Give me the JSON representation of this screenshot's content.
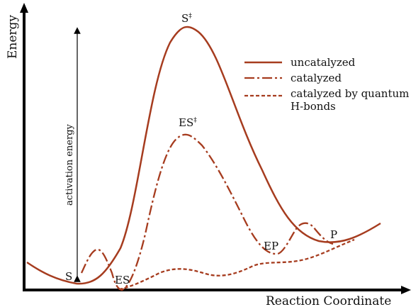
{
  "axes": {
    "y_label": "Energy",
    "x_label": "Reaction Coordinate"
  },
  "annotation": {
    "activation_label": "activation energy"
  },
  "states": {
    "s": "S",
    "s_ts": "S",
    "s_ts_mark": "‡",
    "es": "ES",
    "es_ts": "ES",
    "es_ts_mark": "‡",
    "ep": "EP",
    "p": "P"
  },
  "legend": {
    "items": [
      {
        "key": "uncatalyzed",
        "label": "uncatalyzed",
        "style": "solid"
      },
      {
        "key": "catalyzed",
        "label": "catalyzed",
        "style": "dash-dot"
      },
      {
        "key": "quantum",
        "label_line1": "catalyzed by quantum",
        "label_line2": "H-bonds",
        "style": "dashed"
      }
    ]
  },
  "colors": {
    "curve": "#a63c1f",
    "axis": "#000000",
    "text": "#111111"
  }
}
